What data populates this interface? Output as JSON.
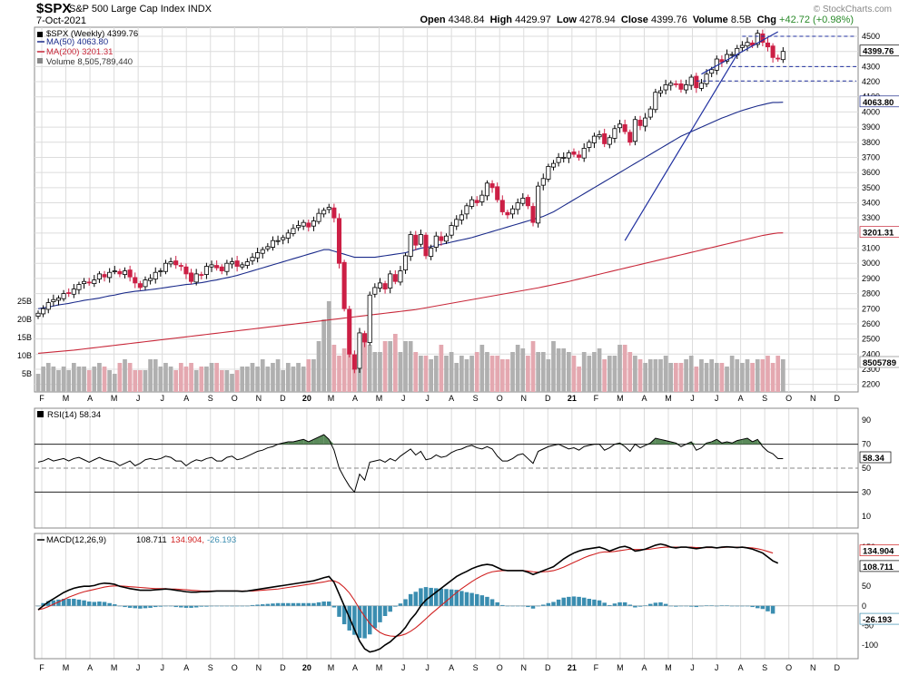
{
  "header": {
    "symbol": "$SPX",
    "name": "S&P 500 Large Cap Index",
    "exchange": "INDX",
    "date": "7-Oct-2021",
    "watermark": "© StockCharts.com",
    "open_label": "Open",
    "open": "4348.84",
    "high_label": "High",
    "high": "4429.97",
    "low_label": "Low",
    "low": "4278.94",
    "close_label": "Close",
    "close": "4399.76",
    "volume_label": "Volume",
    "volume": "8.5B",
    "chg_label": "Chg",
    "chg": "+42.72 (+0.98%)"
  },
  "legend": {
    "price": "$SPX (Weekly) 4399.76",
    "ma50": "MA(50) 4063.80",
    "ma200": "MA(200) 3201.31",
    "volume": "Volume 8,505,789,440"
  },
  "colors": {
    "up": "#ffffff",
    "down": "#cc1f45",
    "ma50": "#1a2a8a",
    "ma200": "#c8283a",
    "vol_up": "#b0b0b0",
    "vol_down": "#e4a8b0",
    "grid": "#dcdcdc",
    "macd": "#000000",
    "signal": "#d02020",
    "hist": "#3a8db0",
    "rsi_fill": "#5a8a5a"
  },
  "x_axis_months": [
    "F",
    "M",
    "A",
    "M",
    "J",
    "J",
    "A",
    "S",
    "O",
    "N",
    "D",
    "20",
    "M",
    "A",
    "M",
    "J",
    "J",
    "A",
    "S",
    "O",
    "N",
    "D",
    "21",
    "F",
    "M",
    "A",
    "M",
    "J",
    "J",
    "A",
    "S",
    "O",
    "N",
    "D"
  ],
  "chart_data": [
    {
      "type": "candlestick",
      "title": "$SPX (Weekly)",
      "y_ticks": [
        2200,
        2300,
        2400,
        2500,
        2600,
        2700,
        2800,
        2900,
        3000,
        3100,
        3200,
        3300,
        3400,
        3500,
        3600,
        3700,
        3800,
        3900,
        4000,
        4100,
        4200,
        4300,
        4400,
        4500
      ],
      "ylim": [
        2150,
        4560
      ],
      "value_labels": {
        "close": "4399.76",
        "ma50": "4063.80",
        "ma200": "3201.31",
        "volume": "8505789"
      },
      "close": [
        2670,
        2700,
        2740,
        2760,
        2770,
        2800,
        2800,
        2830,
        2860,
        2880,
        2870,
        2890,
        2930,
        2910,
        2940,
        2950,
        2930,
        2950,
        2910,
        2870,
        2840,
        2890,
        2900,
        2940,
        2950,
        3000,
        3010,
        2990,
        2980,
        2930,
        2880,
        2930,
        2920,
        2980,
        2990,
        2970,
        2950,
        3000,
        3010,
        2980,
        2990,
        3010,
        3040,
        3070,
        3090,
        3110,
        3150,
        3150,
        3170,
        3200,
        3230,
        3250,
        3270,
        3240,
        3280,
        3330,
        3350,
        3370,
        3300,
        3000,
        2700,
        2400,
        2300,
        2540,
        2480,
        2790,
        2840,
        2870,
        2830,
        2930,
        2880,
        2950,
        3050,
        3190,
        3120,
        3190,
        3050,
        3100,
        3180,
        3150,
        3180,
        3250,
        3290,
        3320,
        3380,
        3420,
        3400,
        3450,
        3530,
        3500,
        3420,
        3340,
        3320,
        3360,
        3400,
        3430,
        3380,
        3270,
        3510,
        3560,
        3640,
        3660,
        3700,
        3700,
        3730,
        3720,
        3700,
        3760,
        3800,
        3840,
        3850,
        3790,
        3830,
        3890,
        3920,
        3870,
        3800,
        3950,
        3910,
        3960,
        4020,
        4130,
        4140,
        4180,
        4190,
        4180,
        4150,
        4180,
        4230,
        4160,
        4190,
        4250,
        4280,
        4350,
        4330,
        4380,
        4380,
        4420,
        4440,
        4460,
        4440,
        4520,
        4460,
        4430,
        4360,
        4350,
        4400
      ],
      "ma50": [
        2700,
        2705,
        2710,
        2718,
        2725,
        2730,
        2735,
        2742,
        2748,
        2755,
        2760,
        2765,
        2770,
        2778,
        2785,
        2790,
        2798,
        2805,
        2810,
        2815,
        2818,
        2822,
        2826,
        2830,
        2835,
        2840,
        2845,
        2850,
        2855,
        2860,
        2862,
        2868,
        2872,
        2878,
        2885,
        2890,
        2898,
        2905,
        2912,
        2920,
        2930,
        2940,
        2950,
        2960,
        2970,
        2980,
        2990,
        3000,
        3010,
        3020,
        3030,
        3040,
        3050,
        3060,
        3070,
        3080,
        3090,
        3090,
        3080,
        3070,
        3060,
        3050,
        3040,
        3040,
        3040,
        3040,
        3040,
        3045,
        3050,
        3055,
        3060,
        3065,
        3070,
        3080,
        3090,
        3100,
        3105,
        3110,
        3118,
        3125,
        3132,
        3140,
        3148,
        3155,
        3162,
        3170,
        3180,
        3190,
        3200,
        3210,
        3220,
        3230,
        3240,
        3250,
        3260,
        3270,
        3280,
        3290,
        3300,
        3310,
        3325,
        3340,
        3360,
        3380,
        3400,
        3420,
        3440,
        3460,
        3480,
        3500,
        3520,
        3540,
        3560,
        3580,
        3600,
        3620,
        3640,
        3660,
        3680,
        3700,
        3720,
        3740,
        3760,
        3780,
        3800,
        3820,
        3840,
        3855,
        3870,
        3885,
        3900,
        3915,
        3930,
        3945,
        3960,
        3972,
        3985,
        3998,
        4010,
        4020,
        4030,
        4040,
        4048,
        4056,
        4063,
        4063,
        4064
      ],
      "ma200": [
        2405,
        2408,
        2411,
        2414,
        2417,
        2420,
        2423,
        2426,
        2430,
        2434,
        2438,
        2442,
        2446,
        2450,
        2454,
        2458,
        2462,
        2466,
        2470,
        2474,
        2478,
        2482,
        2486,
        2490,
        2494,
        2498,
        2502,
        2506,
        2510,
        2514,
        2518,
        2522,
        2526,
        2530,
        2534,
        2538,
        2542,
        2546,
        2550,
        2554,
        2558,
        2562,
        2566,
        2570,
        2574,
        2578,
        2582,
        2586,
        2590,
        2594,
        2598,
        2602,
        2606,
        2610,
        2614,
        2618,
        2622,
        2626,
        2630,
        2634,
        2638,
        2642,
        2646,
        2650,
        2654,
        2658,
        2662,
        2666,
        2670,
        2674,
        2678,
        2682,
        2686,
        2690,
        2694,
        2700,
        2706,
        2712,
        2718,
        2724,
        2730,
        2736,
        2742,
        2748,
        2754,
        2760,
        2766,
        2772,
        2778,
        2784,
        2790,
        2796,
        2802,
        2808,
        2814,
        2820,
        2826,
        2832,
        2838,
        2845,
        2852,
        2859,
        2866,
        2873,
        2880,
        2888,
        2896,
        2904,
        2912,
        2920,
        2928,
        2936,
        2944,
        2952,
        2960,
        2968,
        2976,
        2984,
        2992,
        3000,
        3008,
        3016,
        3024,
        3032,
        3040,
        3048,
        3056,
        3064,
        3072,
        3080,
        3088,
        3096,
        3104,
        3112,
        3120,
        3128,
        3136,
        3144,
        3152,
        3160,
        3168,
        3176,
        3184,
        3190,
        3196,
        3200,
        3201
      ],
      "volume_billions": [
        5,
        7,
        8,
        7,
        6,
        7,
        6,
        8,
        7,
        7,
        6,
        7,
        8,
        7,
        6,
        5,
        8,
        9,
        8,
        6,
        6,
        6,
        9,
        9,
        7,
        8,
        7,
        6,
        8,
        7,
        8,
        6,
        7,
        7,
        8,
        8,
        6,
        6,
        5,
        6,
        7,
        7,
        8,
        7,
        9,
        7,
        8,
        9,
        6,
        8,
        7,
        8,
        7,
        9,
        9,
        14,
        20,
        25,
        13,
        10,
        12,
        11,
        10,
        11,
        15,
        13,
        11,
        11,
        14,
        14,
        16,
        11,
        14,
        14,
        11,
        10,
        10,
        9,
        10,
        13,
        10,
        11,
        8,
        10,
        9,
        10,
        11,
        13,
        11,
        10,
        10,
        9,
        9,
        11,
        13,
        12,
        10,
        14,
        11,
        11,
        9,
        14,
        12,
        12,
        11,
        10,
        7,
        11,
        10,
        11,
        12,
        9,
        10,
        10,
        13,
        13,
        11,
        10,
        9,
        8,
        9,
        9,
        9,
        10,
        8,
        8,
        8,
        9,
        10,
        7,
        9,
        8,
        9,
        8,
        8,
        7,
        10,
        9,
        8,
        9,
        8,
        9,
        9,
        10,
        8,
        10,
        9
      ]
    },
    {
      "type": "line",
      "title": "RSI(14)",
      "series_label": "RSI(14) 58.34",
      "value_label": "58.34",
      "y_ticks": [
        10,
        30,
        50,
        70,
        90
      ],
      "ylim": [
        0,
        100
      ],
      "reference_levels": [
        30,
        50,
        70
      ],
      "values": [
        55,
        56,
        58,
        56,
        57,
        58,
        56,
        58,
        59,
        57,
        55,
        57,
        59,
        57,
        56,
        55,
        52,
        54,
        56,
        52,
        54,
        57,
        58,
        57,
        58,
        60,
        59,
        56,
        56,
        52,
        55,
        57,
        56,
        58,
        59,
        56,
        56,
        59,
        60,
        57,
        58,
        60,
        62,
        64,
        65,
        67,
        68,
        70,
        71,
        72,
        72,
        73,
        74,
        72,
        74,
        76,
        78,
        74,
        65,
        50,
        42,
        35,
        30,
        45,
        40,
        55,
        56,
        57,
        55,
        58,
        56,
        60,
        63,
        66,
        61,
        64,
        57,
        58,
        61,
        59,
        60,
        63,
        65,
        66,
        68,
        69,
        67,
        66,
        68,
        66,
        60,
        56,
        56,
        58,
        61,
        62,
        58,
        54,
        64,
        66,
        68,
        69,
        70,
        68,
        66,
        67,
        65,
        68,
        69,
        70,
        70,
        65,
        67,
        70,
        71,
        68,
        64,
        70,
        67,
        69,
        71,
        75,
        74,
        73,
        72,
        71,
        68,
        70,
        72,
        65,
        67,
        71,
        72,
        74,
        71,
        72,
        71,
        73,
        74,
        75,
        72,
        74,
        68,
        64,
        62,
        58,
        58
      ]
    },
    {
      "type": "line",
      "title": "MACD(12,26,9)",
      "series_label": "MACD(12,26,9)",
      "macd_label": "108.711",
      "signal_label": "134.904",
      "hist_label": "-26.193",
      "value_labels": {
        "signal": "134.904",
        "macd": "108.711",
        "hist": "-26.193"
      },
      "y_ticks": [
        150,
        100,
        50,
        0,
        -50,
        -100
      ],
      "ylim": [
        -135,
        185
      ],
      "macd": [
        -10,
        0,
        10,
        18,
        26,
        34,
        40,
        45,
        48,
        50,
        50,
        52,
        56,
        58,
        57,
        55,
        50,
        47,
        44,
        42,
        40,
        40,
        40,
        41,
        42,
        43,
        42,
        40,
        38,
        36,
        35,
        35,
        36,
        36,
        37,
        38,
        38,
        38,
        38,
        38,
        37,
        38,
        40,
        42,
        44,
        46,
        48,
        50,
        52,
        54,
        56,
        58,
        60,
        62,
        64,
        68,
        72,
        75,
        60,
        30,
        0,
        -30,
        -60,
        -90,
        -110,
        -118,
        -115,
        -110,
        -100,
        -92,
        -80,
        -70,
        -55,
        -35,
        -20,
        0,
        15,
        25,
        35,
        45,
        55,
        65,
        75,
        82,
        88,
        95,
        100,
        104,
        106,
        104,
        98,
        92,
        90,
        90,
        90,
        90,
        86,
        80,
        85,
        90,
        95,
        100,
        110,
        120,
        128,
        135,
        140,
        144,
        146,
        148,
        150,
        146,
        140,
        145,
        150,
        152,
        148,
        140,
        142,
        145,
        150,
        155,
        158,
        155,
        150,
        148,
        150,
        150,
        148,
        146,
        148,
        150,
        150,
        148,
        150,
        151,
        150,
        149,
        150,
        148,
        145,
        140,
        135,
        125,
        115,
        109
      ],
      "signal": [
        -10,
        -7,
        -2,
        4,
        10,
        16,
        22,
        27,
        32,
        36,
        39,
        42,
        45,
        48,
        50,
        51,
        51,
        50,
        49,
        48,
        47,
        46,
        45,
        44,
        44,
        44,
        43,
        43,
        42,
        41,
        40,
        39,
        38,
        38,
        38,
        38,
        38,
        38,
        38,
        38,
        38,
        38,
        38,
        39,
        40,
        41,
        42,
        43,
        45,
        47,
        49,
        51,
        53,
        55,
        57,
        59,
        61,
        64,
        64,
        58,
        47,
        33,
        14,
        -8,
        -27,
        -45,
        -58,
        -68,
        -74,
        -77,
        -78,
        -76,
        -72,
        -65,
        -56,
        -45,
        -33,
        -21,
        -10,
        1,
        12,
        23,
        34,
        44,
        53,
        62,
        70,
        77,
        83,
        87,
        89,
        90,
        90,
        90,
        90,
        90,
        89,
        87,
        86,
        87,
        88,
        90,
        94,
        99,
        105,
        111,
        117,
        123,
        128,
        132,
        136,
        138,
        138,
        139,
        141,
        143,
        145,
        144,
        144,
        144,
        145,
        147,
        149,
        150,
        150,
        150,
        150,
        150,
        150,
        149,
        149,
        149,
        149,
        149,
        149,
        150,
        150,
        150,
        150,
        149,
        148,
        146,
        143,
        139,
        135
      ]
    }
  ]
}
